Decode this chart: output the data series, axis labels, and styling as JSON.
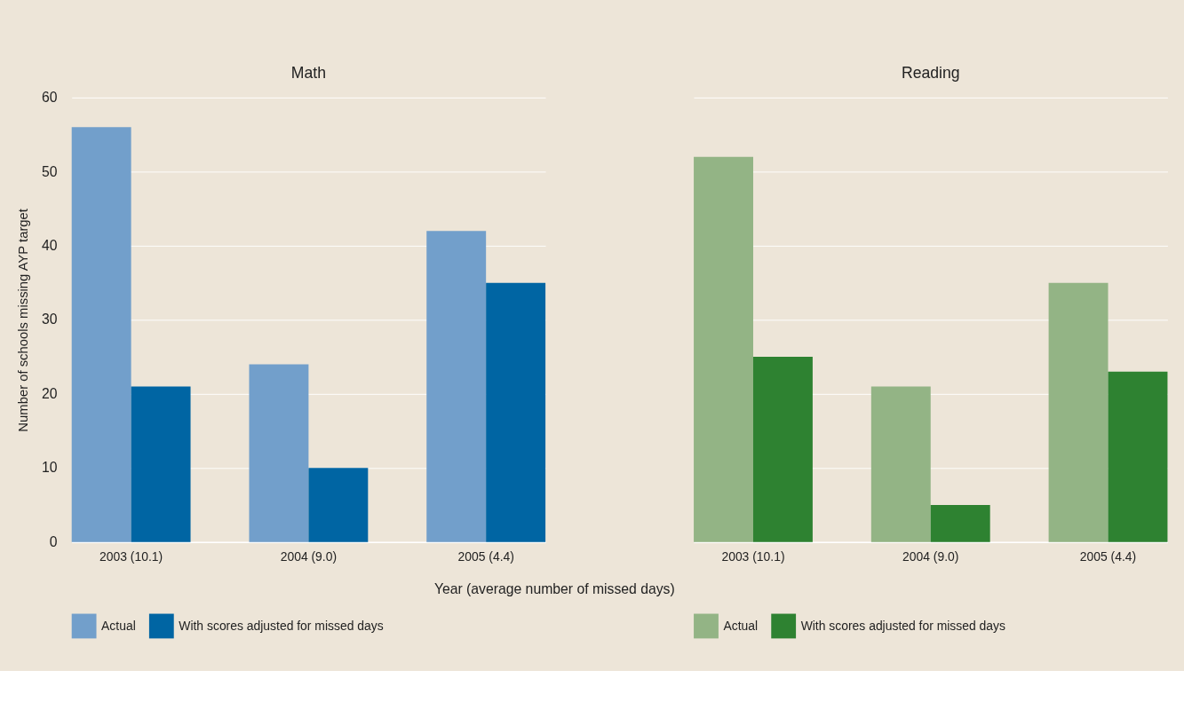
{
  "chart_data": [
    {
      "type": "bar",
      "title": "Math",
      "xlabel": "Year (average number of missed days)",
      "ylabel": "Number of schools missing AYP target",
      "categories": [
        "2003 (10.1)",
        "2004 (9.0)",
        "2005 (4.4)"
      ],
      "series": [
        {
          "name": "Actual",
          "color": "#729fcb",
          "values": [
            56,
            24,
            42
          ]
        },
        {
          "name": "With scores adjusted for missed days",
          "color": "#0065a3",
          "values": [
            21,
            10,
            35
          ]
        }
      ],
      "ylim": [
        0,
        60
      ],
      "yticks": [
        0,
        10,
        20,
        30,
        40,
        50,
        60
      ],
      "grid": "y",
      "legend": "bottom"
    },
    {
      "type": "bar",
      "title": "Reading",
      "categories": [
        "2003 (10.1)",
        "2004 (9.0)",
        "2005 (4.4)"
      ],
      "series": [
        {
          "name": "Actual",
          "color": "#93b485",
          "values": [
            52,
            21,
            35
          ]
        },
        {
          "name": "With scores adjusted for missed days",
          "color": "#2e8231",
          "values": [
            25,
            5,
            23
          ]
        }
      ],
      "ylim": [
        0,
        60
      ],
      "yticks": [
        0,
        10,
        20,
        30,
        40,
        50,
        60
      ],
      "grid": "y",
      "legend": "bottom",
      "tick_labels": "x"
    }
  ]
}
